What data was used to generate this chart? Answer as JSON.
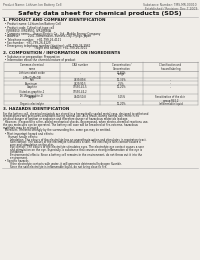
{
  "bg_color": "#f0ede8",
  "header_left": "Product Name: Lithium Ion Battery Cell",
  "header_right_line1": "Substance Number: TMS-MR-00010",
  "header_right_line2": "Established / Revision: Dec.7.2009",
  "title": "Safety data sheet for chemical products (SDS)",
  "section1_title": "1. PRODUCT AND COMPANY IDENTIFICATION",
  "section1_lines": [
    "  • Product name: Lithium Ion Battery Cell",
    "  • Product code: Cylindrical-type cell",
    "    IVR88650, IVR18650, IVR18650A",
    "  • Company name:    Sanyo Electric Co., Ltd., Mobile Energy Company",
    "  • Address:          2001, Kamimadori, Sumoto-City, Hyogo, Japan",
    "  • Telephone number:   +81-799-26-4111",
    "  • Fax number:  +81-799-26-4129",
    "  • Emergency telephone number (daytime): +81-799-26-3962",
    "                                    (Night and holiday): +81-799-26-3101"
  ],
  "section2_title": "2. COMPOSITION / INFORMATION ON INGREDIENTS",
  "section2_sub1": "  • Substance or preparation: Preparation",
  "section2_sub2": "  • Information about the chemical nature of product",
  "col_headers": [
    "Common chemical name",
    "CAS number",
    "Concentration /\nConcentration range",
    "Classification and\nhazard labeling"
  ],
  "table_rows": [
    [
      "Lithium cobalt oxide\n(LiMn/CoMnO4)",
      "-",
      "20-60%",
      ""
    ],
    [
      "Iron",
      "7439-89-6",
      "10-35%",
      "-"
    ],
    [
      "Aluminum",
      "7429-90-5",
      "2-5%",
      "-"
    ],
    [
      "Graphite\n(listed as graphite-1\nLM-1No.graphite-1)",
      "77550-42-5\n77550-44-2",
      "10-20%",
      "-"
    ],
    [
      "Copper",
      "7440-50-8",
      "5-15%",
      "Sensitization of the skin\ngroup R42.2"
    ],
    [
      "Organic electrolyte",
      "-",
      "10-20%",
      "Inflammable liquid"
    ]
  ],
  "section3_title": "3. HAZARDS IDENTIFICATION",
  "section3_para1": "For the battery cell, chemical materials are stored in a hermetically sealed metal case, designed to withstand\ntemperatures and pressures-conditions during normal use. As a result, during normal use, there is no\nphysical danger of ignition or explosion and therefore danger of hazardous materials leakage.",
  "section3_para2": "  However, if exposed to a fire, added mechanical shocks, decomposed, when electro-chemical reactions use,\nthe gas molecules can be operated. The battery cell case will be breached at fire-extreme, hazardous\nmaterials may be released.",
  "section3_para3": "  Moreover, if heated strongly by the surrounding fire, some gas may be emitted.",
  "section3_bullet1_title": "  • Most important hazard and effects:",
  "section3_b1_lines": [
    "      Human health effects:",
    "        Inhalation: The odours of the electrolyte has an anaesthesia action and stimulates in respiratory tract.",
    "        Skin contact: The odours of the electrolyte stimulates a skin. The electrolyte skin contact causes a",
    "        sore and stimulation on the skin.",
    "        Eye contact: The odours of the electrolyte stimulates eyes. The electrolyte eye contact causes a sore",
    "        and stimulation on the eye. Especially, a substance that causes a strong inflammation of the eye is",
    "        contained.",
    "        Environmental effects: Since a battery cell remains in the environment, do not throw out it into the",
    "        environment."
  ],
  "section3_bullet2_title": "  • Specific hazards:",
  "section3_b2_lines": [
    "        If the electrolyte contacts with water, it will generate detrimental hydrogen fluoride.",
    "        Since the said electrolyte is inflammable liquid, do not bring close to fire."
  ],
  "text_color": "#1a1a1a",
  "header_color": "#555555",
  "line_color": "#aaaaaa",
  "table_line_color": "#888888"
}
